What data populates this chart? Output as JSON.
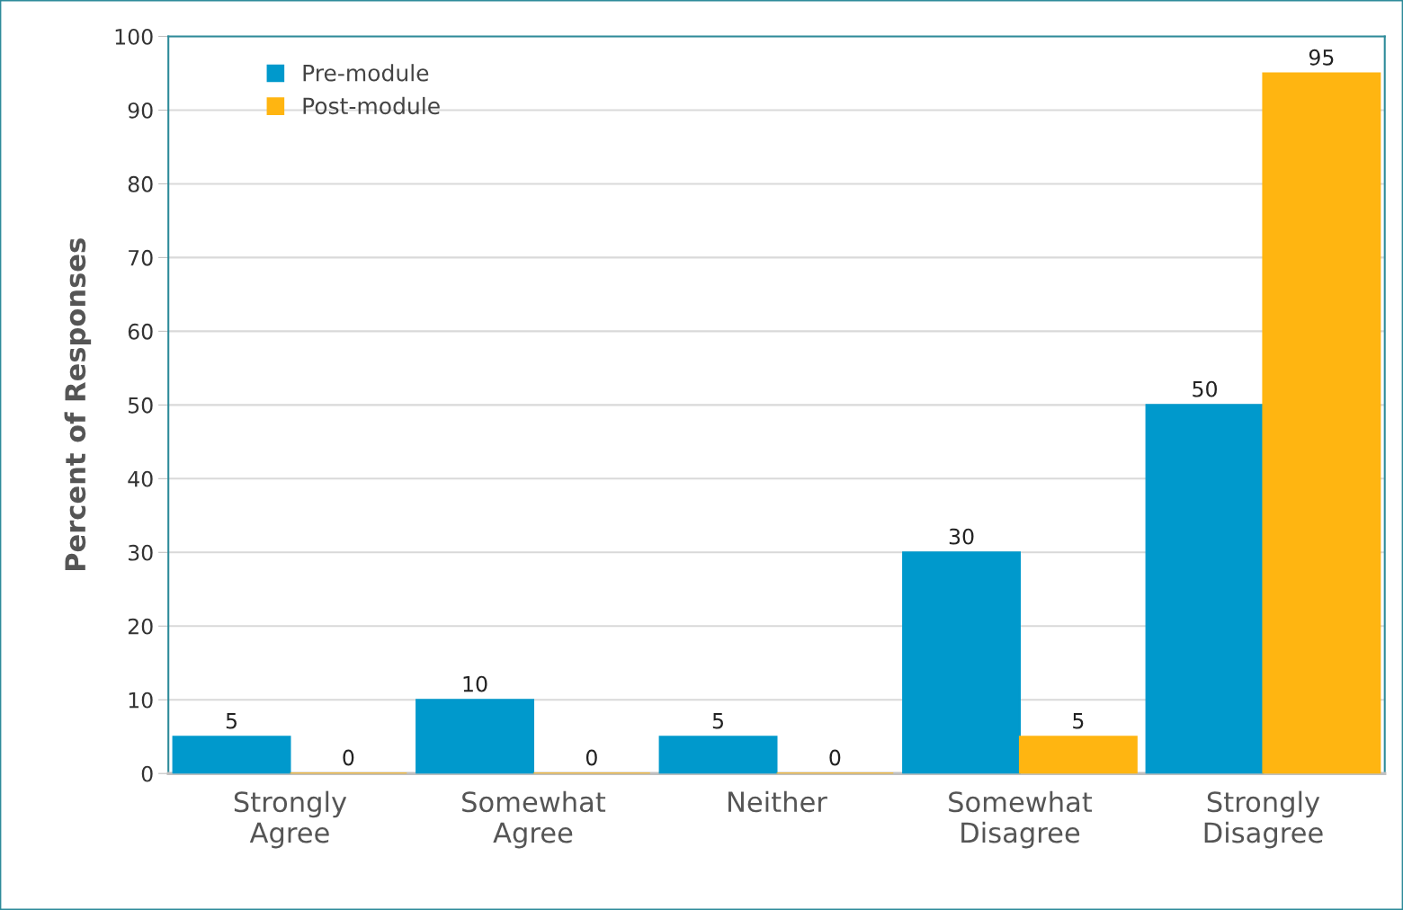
{
  "chart_data": {
    "type": "bar",
    "ylabel": "Percent of Responses",
    "categories": [
      "Strongly Agree",
      "Somewhat Agree",
      "Neither",
      "Somewhat Disagree",
      "Strongly Disagree"
    ],
    "series": [
      {
        "name": "Pre-module",
        "color": "#0099cc",
        "values": [
          5,
          10,
          5,
          30,
          50
        ]
      },
      {
        "name": "Post-module",
        "color": "#ffb511",
        "values": [
          0,
          0,
          0,
          5,
          95
        ]
      }
    ],
    "ylim": [
      0,
      100
    ],
    "yticks": [
      0,
      10,
      20,
      30,
      40,
      50,
      60,
      70,
      80,
      90,
      100
    ],
    "grid": "y",
    "legend": "top left",
    "data_labels": true
  }
}
